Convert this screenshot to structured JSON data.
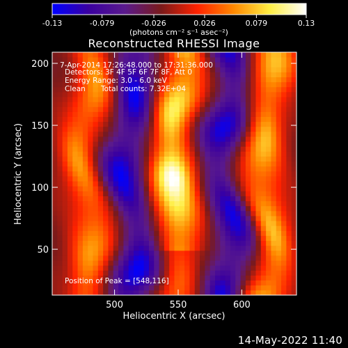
{
  "chart_data": {
    "type": "heatmap",
    "title": "Reconstructed RHESSI Image",
    "xlabel": "Heliocentric X (arcsec)",
    "ylabel": "Heliocentric Y (arcsec)",
    "xlim": [
      451,
      643
    ],
    "ylim": [
      13,
      209
    ],
    "x_ticks": [
      500,
      550,
      600
    ],
    "y_ticks": [
      50,
      100,
      150,
      200
    ],
    "colorbar": {
      "range": [
        -0.13,
        0.13
      ],
      "ticks": [
        "-0.13",
        "-0.079",
        "-0.026",
        "0.026",
        "0.079",
        "0.13"
      ],
      "unit_label": "(photons cm⁻² s⁻¹ asec⁻²)",
      "colormap": [
        "#0000ff",
        "#3a00a0",
        "#5a1a8c",
        "#7a1a1a",
        "#ff2200",
        "#ff8800",
        "#ffee44",
        "#ffffff"
      ]
    },
    "annotations": {
      "time_range": "7-Apr-2014 17:26:48.000 to 17:31:36.000",
      "detectors": "Detectors: 3F 4F 5F 6F 7F 8F, Att 0",
      "energy": "Energy Range: 3.0 - 6.0 keV",
      "clean_label": "Clean",
      "total_counts": "Total counts: 7.32E+04",
      "peak": "Position of Peak = [548,116]"
    },
    "peak": [
      548,
      116
    ],
    "bright_ridges": [
      {
        "x": 478,
        "y": [
          20,
          205
        ],
        "level": 0.6
      },
      {
        "x": 548,
        "y": [
          60,
          200
        ],
        "level": 0.85
      },
      {
        "x": 620,
        "y": [
          15,
          205
        ],
        "level": 0.7
      }
    ],
    "dark_ridges": [
      {
        "x": 513,
        "y": [
          20,
          205
        ],
        "level": -0.75
      },
      {
        "x": 588,
        "y": [
          20,
          205
        ],
        "level": -0.7
      }
    ]
  },
  "footer_date": "14-May-2022 11:40"
}
